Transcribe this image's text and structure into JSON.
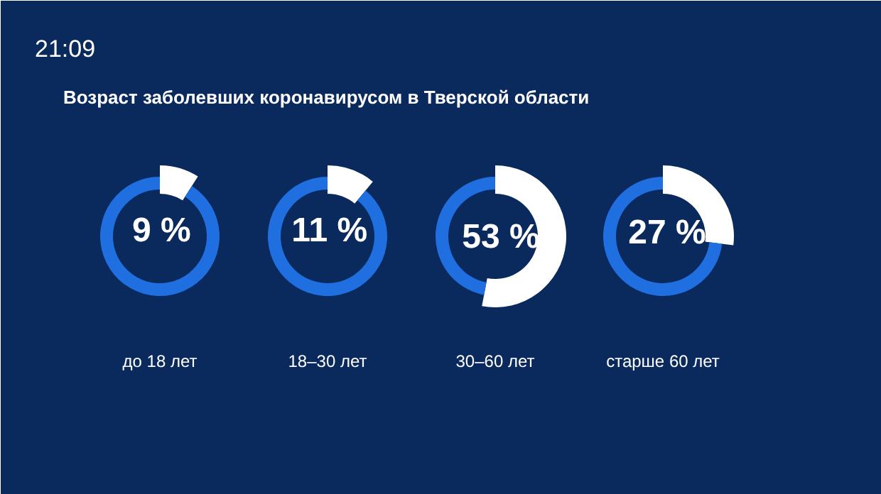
{
  "chart_data": [
    {
      "type": "donut",
      "title": "до 18 лет",
      "annotations": [
        "21:09",
        "Возраст заболевших коронавирусом в Тверской области"
      ],
      "categories": [
        null,
        null
      ],
      "values": [
        9,
        91
      ],
      "colors": [
        "#ffffff",
        "#1f6fe0"
      ],
      "value_labels": [
        "9 %",
        null
      ]
    },
    {
      "type": "donut",
      "title": "18–30 лет",
      "categories": [
        null,
        null
      ],
      "values": [
        11,
        89
      ],
      "colors": [
        "#ffffff",
        "#1f6fe0"
      ],
      "value_labels": [
        "11 %",
        null
      ]
    },
    {
      "type": "donut",
      "title": "30–60 лет",
      "categories": [
        null,
        null
      ],
      "values": [
        53,
        47
      ],
      "colors": [
        "#ffffff",
        "#1f6fe0"
      ],
      "value_labels": [
        "53 %",
        null
      ]
    },
    {
      "type": "donut",
      "title": "старше 60 лет",
      "categories": [
        null,
        null
      ],
      "values": [
        27,
        73
      ],
      "colors": [
        "#ffffff",
        "#1f6fe0"
      ],
      "value_labels": [
        "27 %",
        null
      ]
    }
  ]
}
